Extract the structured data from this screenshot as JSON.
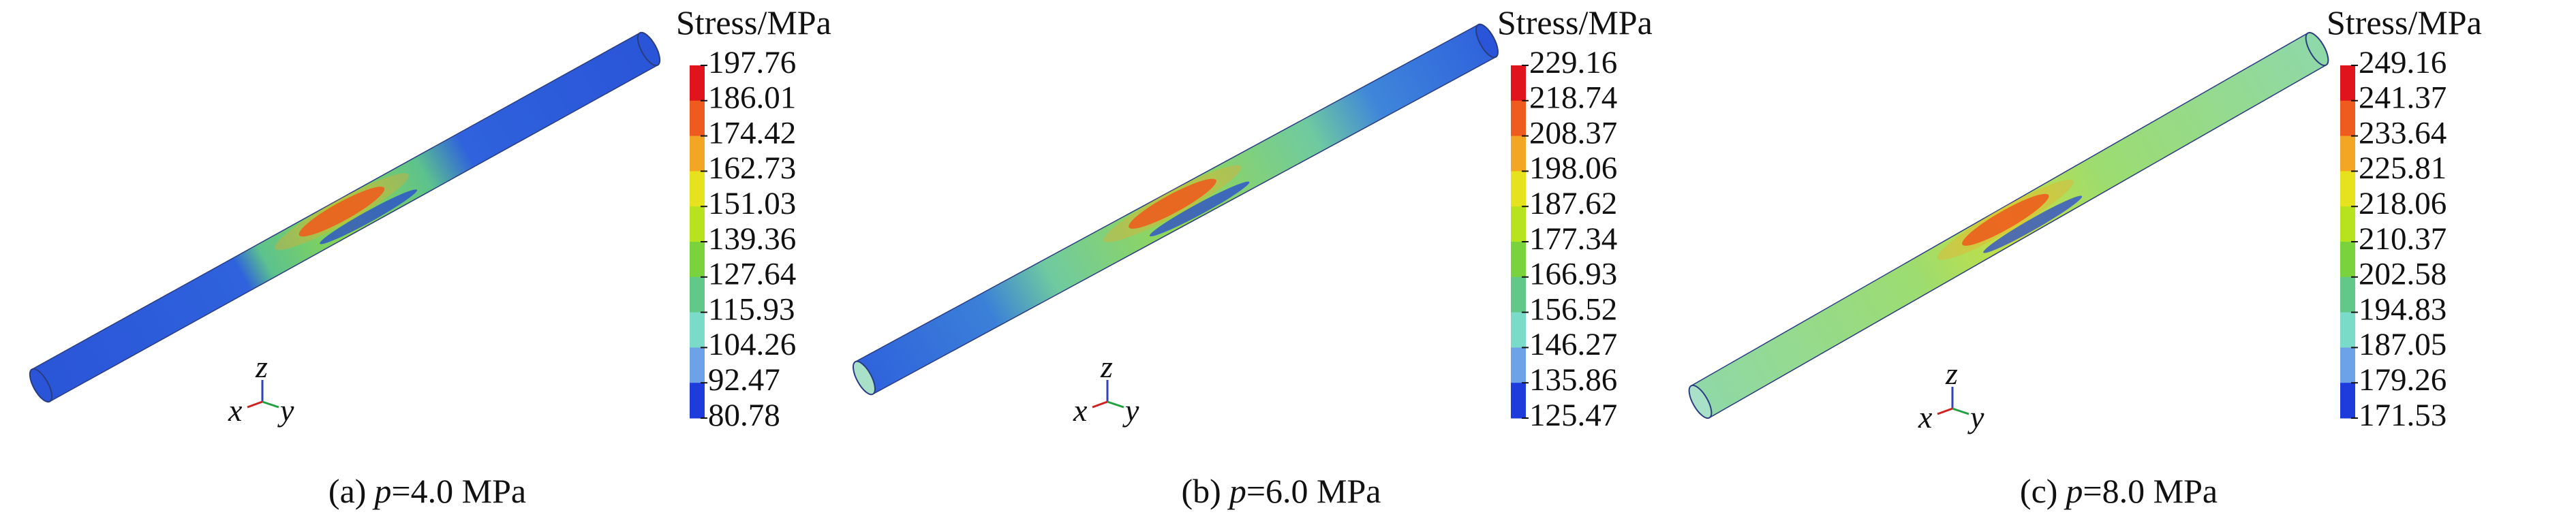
{
  "panels": [
    {
      "legend_title": "Stress/MPa",
      "legend_labels": [
        "197.76",
        "186.01",
        "174.42",
        "162.73",
        "151.03",
        "139.36",
        "127.64",
        "115.93",
        "104.26",
        "92.47",
        "80.78"
      ],
      "axes": {
        "z": "z",
        "x": "x",
        "y": "y"
      },
      "caption": {
        "label": "(a)",
        "variable": "p",
        "value": "=4.0 MPa"
      }
    },
    {
      "legend_title": "Stress/MPa",
      "legend_labels": [
        "229.16",
        "218.74",
        "208.37",
        "198.06",
        "187.62",
        "177.34",
        "166.93",
        "156.52",
        "146.27",
        "135.86",
        "125.47"
      ],
      "axes": {
        "z": "z",
        "x": "x",
        "y": "y"
      },
      "caption": {
        "label": "(b)",
        "variable": "p",
        "value": "=6.0 MPa"
      }
    },
    {
      "legend_title": "Stress/MPa",
      "legend_labels": [
        "249.16",
        "241.37",
        "233.64",
        "225.81",
        "218.06",
        "210.37",
        "202.58",
        "194.83",
        "187.05",
        "179.26",
        "171.53"
      ],
      "axes": {
        "z": "z",
        "x": "x",
        "y": "y"
      },
      "caption": {
        "label": "(c)",
        "variable": "p",
        "value": "=8.0 MPa"
      }
    }
  ]
}
